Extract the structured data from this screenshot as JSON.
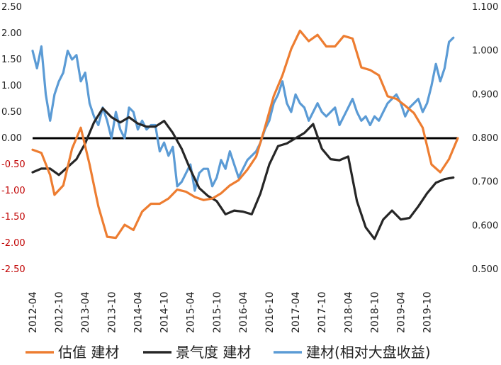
{
  "chart_data": {
    "type": "line",
    "title": "",
    "xlabel": "",
    "ylabel": "",
    "x_ticks": [
      "2012-04",
      "2012-10",
      "2013-04",
      "2013-10",
      "2014-04",
      "2014-10",
      "2015-04",
      "2015-10",
      "2016-04",
      "2016-10",
      "2017-04",
      "2017-10",
      "2018-04",
      "2018-10",
      "2019-04",
      "2019-10"
    ],
    "y_left_ticks": [
      "2.50",
      "2.00",
      "1.50",
      "1.00",
      "0.50",
      "0.00",
      "-0.50",
      "-1.00",
      "-1.50",
      "-2.00",
      "-2.50"
    ],
    "y_left_range": [
      -2.5,
      2.5
    ],
    "y_right_ticks": [
      "1.100",
      "1.000",
      "0.900",
      "0.800",
      "0.700",
      "0.600",
      "0.500"
    ],
    "y_right_range": [
      0.5,
      1.1
    ],
    "zero_line": true,
    "grid": false,
    "legend_position": "bottom",
    "series": [
      {
        "name": "估值 建材",
        "color": "#ED7D31",
        "axis": "left",
        "points": [
          [
            "2012-04",
            -0.22
          ],
          [
            "2012-06",
            -0.28
          ],
          [
            "2012-08",
            -0.7
          ],
          [
            "2012-09",
            -1.08
          ],
          [
            "2012-11",
            -0.9
          ],
          [
            "2013-01",
            -0.2
          ],
          [
            "2013-03",
            0.2
          ],
          [
            "2013-05",
            -0.5
          ],
          [
            "2013-07",
            -1.3
          ],
          [
            "2013-09",
            -1.88
          ],
          [
            "2013-11",
            -1.9
          ],
          [
            "2014-01",
            -1.65
          ],
          [
            "2014-03",
            -1.75
          ],
          [
            "2014-05",
            -1.4
          ],
          [
            "2014-07",
            -1.25
          ],
          [
            "2014-09",
            -1.25
          ],
          [
            "2014-11",
            -1.15
          ],
          [
            "2015-01",
            -0.98
          ],
          [
            "2015-03",
            -1.02
          ],
          [
            "2015-05",
            -1.12
          ],
          [
            "2015-07",
            -1.18
          ],
          [
            "2015-09",
            -1.15
          ],
          [
            "2015-11",
            -1.05
          ],
          [
            "2016-01",
            -0.9
          ],
          [
            "2016-03",
            -0.8
          ],
          [
            "2016-05",
            -0.6
          ],
          [
            "2016-07",
            -0.35
          ],
          [
            "2016-09",
            0.2
          ],
          [
            "2016-11",
            0.8
          ],
          [
            "2017-01",
            1.2
          ],
          [
            "2017-03",
            1.7
          ],
          [
            "2017-05",
            2.05
          ],
          [
            "2017-07",
            1.85
          ],
          [
            "2017-09",
            1.97
          ],
          [
            "2017-11",
            1.75
          ],
          [
            "2018-01",
            1.75
          ],
          [
            "2018-03",
            1.95
          ],
          [
            "2018-05",
            1.9
          ],
          [
            "2018-07",
            1.35
          ],
          [
            "2018-09",
            1.3
          ],
          [
            "2018-11",
            1.2
          ],
          [
            "2019-01",
            0.8
          ],
          [
            "2019-03",
            0.75
          ],
          [
            "2019-05",
            0.62
          ],
          [
            "2019-07",
            0.48
          ],
          [
            "2019-09",
            0.2
          ],
          [
            "2019-11",
            -0.5
          ],
          [
            "2020-01",
            -0.65
          ],
          [
            "2020-03",
            -0.4
          ],
          [
            "2020-05",
            0.0
          ]
        ]
      },
      {
        "name": "景气度 建材",
        "color": "#262626",
        "axis": "left",
        "points": [
          [
            "2012-04",
            -0.65
          ],
          [
            "2012-06",
            -0.58
          ],
          [
            "2012-08",
            -0.58
          ],
          [
            "2012-10",
            -0.7
          ],
          [
            "2012-12",
            -0.55
          ],
          [
            "2013-02",
            -0.4
          ],
          [
            "2013-04",
            -0.1
          ],
          [
            "2013-06",
            0.3
          ],
          [
            "2013-08",
            0.57
          ],
          [
            "2013-10",
            0.4
          ],
          [
            "2013-12",
            0.3
          ],
          [
            "2014-02",
            0.4
          ],
          [
            "2014-04",
            0.28
          ],
          [
            "2014-06",
            0.22
          ],
          [
            "2014-08",
            0.22
          ],
          [
            "2014-10",
            0.33
          ],
          [
            "2014-12",
            0.1
          ],
          [
            "2015-02",
            -0.2
          ],
          [
            "2015-04",
            -0.6
          ],
          [
            "2015-06",
            -0.95
          ],
          [
            "2015-08",
            -1.1
          ],
          [
            "2015-10",
            -1.2
          ],
          [
            "2015-12",
            -1.45
          ],
          [
            "2016-02",
            -1.38
          ],
          [
            "2016-04",
            -1.4
          ],
          [
            "2016-06",
            -1.45
          ],
          [
            "2016-08",
            -1.05
          ],
          [
            "2016-10",
            -0.5
          ],
          [
            "2016-12",
            -0.15
          ],
          [
            "2017-02",
            -0.1
          ],
          [
            "2017-04",
            0.0
          ],
          [
            "2017-06",
            0.1
          ],
          [
            "2017-08",
            0.27
          ],
          [
            "2017-10",
            -0.2
          ],
          [
            "2017-12",
            -0.4
          ],
          [
            "2018-02",
            -0.42
          ],
          [
            "2018-04",
            -0.35
          ],
          [
            "2018-06",
            -1.2
          ],
          [
            "2018-08",
            -1.7
          ],
          [
            "2018-10",
            -1.92
          ],
          [
            "2018-12",
            -1.55
          ],
          [
            "2019-02",
            -1.38
          ],
          [
            "2019-04",
            -1.55
          ],
          [
            "2019-06",
            -1.52
          ],
          [
            "2019-08",
            -1.3
          ],
          [
            "2019-10",
            -1.05
          ],
          [
            "2019-12",
            -0.85
          ],
          [
            "2020-02",
            -0.78
          ],
          [
            "2020-04",
            -0.75
          ]
        ]
      },
      {
        "name": "建材(相对大盘收益)",
        "color": "#5B9BD5",
        "axis": "right",
        "points": [
          [
            "2012-04",
            1.0
          ],
          [
            "2012-05",
            0.96
          ],
          [
            "2012-06",
            1.01
          ],
          [
            "2012-07",
            0.9
          ],
          [
            "2012-08",
            0.84
          ],
          [
            "2012-09",
            0.9
          ],
          [
            "2012-10",
            0.93
          ],
          [
            "2012-11",
            0.95
          ],
          [
            "2012-12",
            1.0
          ],
          [
            "2013-01",
            0.98
          ],
          [
            "2013-02",
            0.99
          ],
          [
            "2013-03",
            0.93
          ],
          [
            "2013-04",
            0.95
          ],
          [
            "2013-05",
            0.88
          ],
          [
            "2013-06",
            0.85
          ],
          [
            "2013-07",
            0.83
          ],
          [
            "2013-08",
            0.87
          ],
          [
            "2013-09",
            0.84
          ],
          [
            "2013-10",
            0.8
          ],
          [
            "2013-11",
            0.86
          ],
          [
            "2013-12",
            0.82
          ],
          [
            "2014-01",
            0.8
          ],
          [
            "2014-02",
            0.87
          ],
          [
            "2014-03",
            0.86
          ],
          [
            "2014-04",
            0.82
          ],
          [
            "2014-05",
            0.84
          ],
          [
            "2014-06",
            0.82
          ],
          [
            "2014-07",
            0.83
          ],
          [
            "2014-08",
            0.83
          ],
          [
            "2014-09",
            0.77
          ],
          [
            "2014-10",
            0.79
          ],
          [
            "2014-11",
            0.76
          ],
          [
            "2014-12",
            0.78
          ],
          [
            "2015-01",
            0.69
          ],
          [
            "2015-02",
            0.7
          ],
          [
            "2015-03",
            0.72
          ],
          [
            "2015-04",
            0.74
          ],
          [
            "2015-05",
            0.68
          ],
          [
            "2015-06",
            0.72
          ],
          [
            "2015-07",
            0.73
          ],
          [
            "2015-08",
            0.73
          ],
          [
            "2015-09",
            0.69
          ],
          [
            "2015-10",
            0.71
          ],
          [
            "2015-11",
            0.75
          ],
          [
            "2015-12",
            0.73
          ],
          [
            "2016-01",
            0.77
          ],
          [
            "2016-02",
            0.74
          ],
          [
            "2016-03",
            0.71
          ],
          [
            "2016-04",
            0.73
          ],
          [
            "2016-05",
            0.75
          ],
          [
            "2016-06",
            0.76
          ],
          [
            "2016-07",
            0.77
          ],
          [
            "2016-08",
            0.79
          ],
          [
            "2016-09",
            0.82
          ],
          [
            "2016-10",
            0.84
          ],
          [
            "2016-11",
            0.88
          ],
          [
            "2016-12",
            0.9
          ],
          [
            "2017-01",
            0.93
          ],
          [
            "2017-02",
            0.88
          ],
          [
            "2017-03",
            0.86
          ],
          [
            "2017-04",
            0.9
          ],
          [
            "2017-05",
            0.88
          ],
          [
            "2017-06",
            0.87
          ],
          [
            "2017-07",
            0.84
          ],
          [
            "2017-08",
            0.86
          ],
          [
            "2017-09",
            0.88
          ],
          [
            "2017-10",
            0.86
          ],
          [
            "2017-11",
            0.85
          ],
          [
            "2017-12",
            0.86
          ],
          [
            "2018-01",
            0.87
          ],
          [
            "2018-02",
            0.83
          ],
          [
            "2018-03",
            0.85
          ],
          [
            "2018-04",
            0.87
          ],
          [
            "2018-05",
            0.89
          ],
          [
            "2018-06",
            0.86
          ],
          [
            "2018-07",
            0.84
          ],
          [
            "2018-08",
            0.85
          ],
          [
            "2018-09",
            0.83
          ],
          [
            "2018-10",
            0.85
          ],
          [
            "2018-11",
            0.84
          ],
          [
            "2018-12",
            0.86
          ],
          [
            "2019-01",
            0.88
          ],
          [
            "2019-02",
            0.89
          ],
          [
            "2019-03",
            0.9
          ],
          [
            "2019-04",
            0.88
          ],
          [
            "2019-05",
            0.85
          ],
          [
            "2019-06",
            0.87
          ],
          [
            "2019-07",
            0.88
          ],
          [
            "2019-08",
            0.89
          ],
          [
            "2019-09",
            0.86
          ],
          [
            "2019-10",
            0.88
          ],
          [
            "2019-11",
            0.92
          ],
          [
            "2019-12",
            0.97
          ],
          [
            "2020-01",
            0.93
          ],
          [
            "2020-02",
            0.96
          ],
          [
            "2020-03",
            1.02
          ],
          [
            "2020-04",
            1.03
          ]
        ]
      }
    ]
  }
}
